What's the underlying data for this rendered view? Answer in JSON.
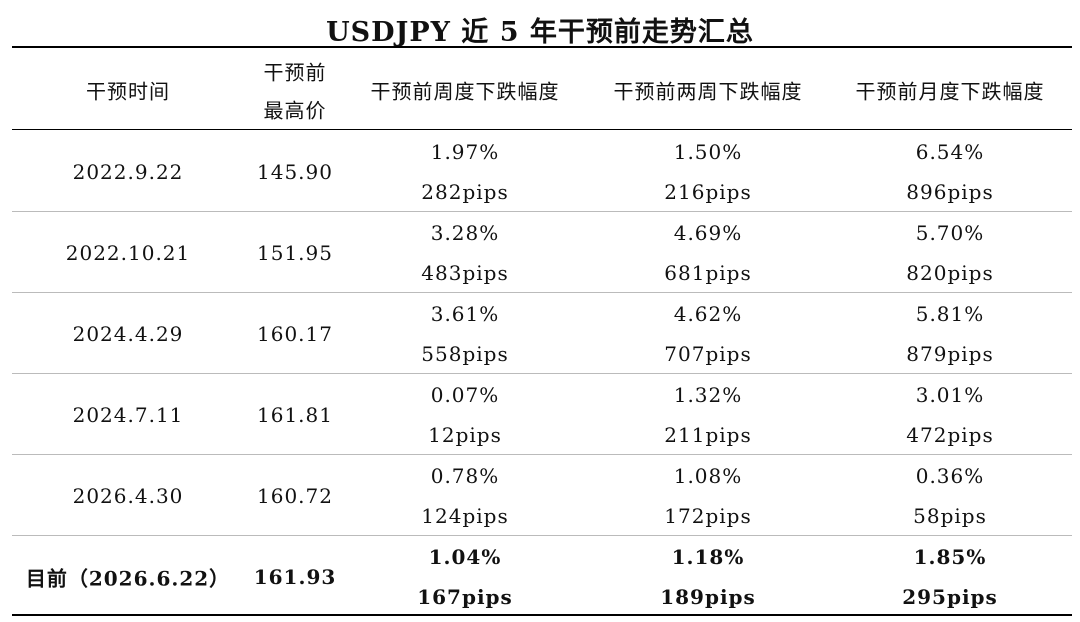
{
  "title": "USDJPY 近 5 年干预前走势汇总",
  "table": {
    "header": [
      "干预时间",
      [
        "干预前",
        "最高价"
      ],
      "干预前周度下跌幅度",
      "干预前两周下跌幅度",
      "干预前月度下跌幅度"
    ],
    "rows": [
      [
        "2022.9.22",
        "145.90",
        [
          "1.97%",
          "282pips"
        ],
        [
          "1.50%",
          "216pips"
        ],
        [
          "6.54%",
          "896pips"
        ]
      ],
      [
        "2022.10.21",
        "151.95",
        [
          "3.28%",
          "483pips"
        ],
        [
          "4.69%",
          "681pips"
        ],
        [
          "5.70%",
          "820pips"
        ]
      ],
      [
        "2024.4.29",
        "160.17",
        [
          "3.61%",
          "558pips"
        ],
        [
          "4.62%",
          "707pips"
        ],
        [
          "5.81%",
          "879pips"
        ]
      ],
      [
        "2024.7.11",
        "161.81",
        [
          "0.07%",
          "12pips"
        ],
        [
          "1.32%",
          "211pips"
        ],
        [
          "3.01%",
          "472pips"
        ]
      ],
      [
        "2026.4.30",
        "160.72",
        [
          "0.78%",
          "124pips"
        ],
        [
          "1.08%",
          "172pips"
        ],
        [
          "0.36%",
          "58pips"
        ]
      ],
      [
        "目前（2026.6.22）",
        "161.93",
        [
          "1.04%",
          "167pips"
        ],
        [
          "1.18%",
          "189pips"
        ],
        [
          "1.85%",
          "295pips"
        ]
      ]
    ]
  }
}
